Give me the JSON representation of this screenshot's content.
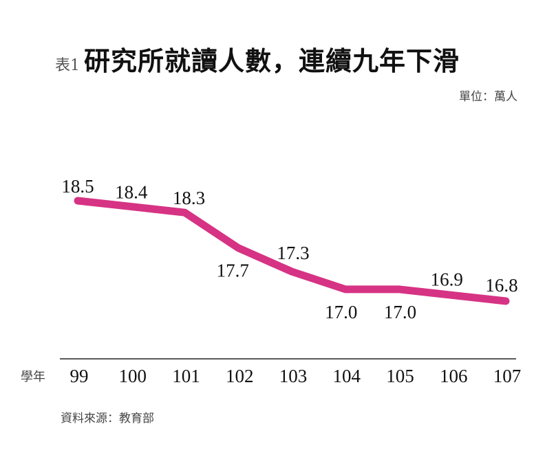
{
  "header": {
    "prefix": "表1",
    "title": "研究所就讀人數，連續九年下滑",
    "unit": "單位：萬人"
  },
  "axis": {
    "x_title": "學年"
  },
  "footer": {
    "source": "資料來源：教育部"
  },
  "colors": {
    "line": "#d63384",
    "text": "#111111",
    "axis": "#222222"
  },
  "chart_data": {
    "type": "line",
    "title": "研究所就讀人數，連續九年下滑",
    "subtitle": "單位：萬人",
    "xlabel": "學年",
    "ylabel": "萬人",
    "categories": [
      "99",
      "100",
      "101",
      "102",
      "103",
      "104",
      "105",
      "106",
      "107"
    ],
    "series": [
      {
        "name": "研究所就讀人數",
        "values": [
          18.5,
          18.4,
          18.3,
          17.7,
          17.3,
          17.0,
          17.0,
          16.9,
          16.8
        ]
      }
    ],
    "data_labels": [
      "18.5",
      "18.4",
      "18.3",
      "17.7",
      "17.3",
      "17.0",
      "17.0",
      "16.9",
      "16.8"
    ],
    "ylim": [
      16.5,
      18.7
    ],
    "grid": false,
    "legend": "none",
    "source": "資料來源：教育部"
  }
}
